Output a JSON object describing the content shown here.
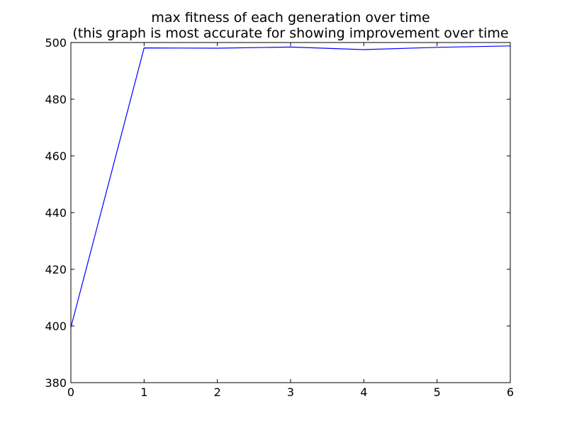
{
  "chart_data": {
    "type": "line",
    "title": "max fitness of each generation over time",
    "subtitle": "(this graph is most accurate for showing improvement over time",
    "xlabel": "",
    "ylabel": "",
    "xlim": [
      0,
      6
    ],
    "ylim": [
      380,
      500
    ],
    "xticks": [
      0,
      1,
      2,
      3,
      4,
      5,
      6
    ],
    "yticks": [
      380,
      400,
      420,
      440,
      460,
      480,
      500
    ],
    "grid": false,
    "line_color": "#0000ff",
    "series": [
      {
        "x": [
          0,
          1,
          2,
          3,
          4,
          5,
          6
        ],
        "y": [
          399.5,
          498.1,
          498.0,
          498.4,
          497.5,
          498.3,
          498.8
        ]
      }
    ]
  }
}
